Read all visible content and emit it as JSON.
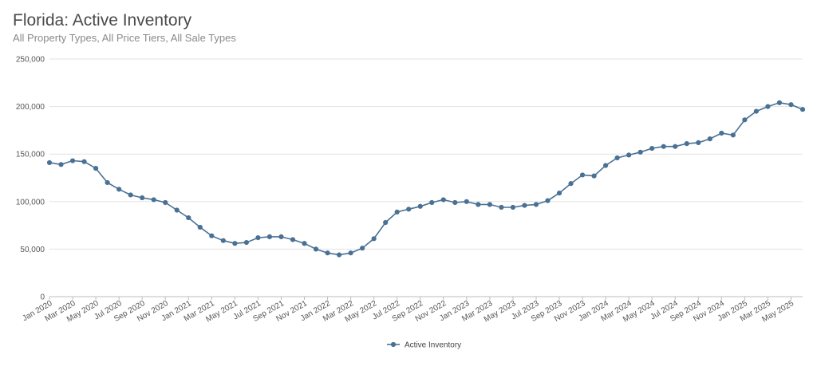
{
  "chart_data": {
    "type": "line",
    "title": "Florida: Active Inventory",
    "subtitle": "All Property Types, All Price Tiers, All Sale Types",
    "xlabel": "",
    "ylabel": "",
    "ylim": [
      0,
      250000
    ],
    "yticks": [
      "0",
      "50,000",
      "100,000",
      "150,000",
      "200,000",
      "250,000"
    ],
    "ytick_values": [
      0,
      50000,
      100000,
      150000,
      200000,
      250000
    ],
    "xtick_labels": [
      "Jan 2020",
      "Mar 2020",
      "May 2020",
      "Jul 2020",
      "Sep 2020",
      "Nov 2020",
      "Jan 2021",
      "Mar 2021",
      "May 2021",
      "Jul 2021",
      "Sep 2021",
      "Nov 2021",
      "Jan 2022",
      "Mar 2022",
      "May 2022",
      "Jul 2022",
      "Sep 2022",
      "Nov 2022",
      "Jan 2023",
      "Mar 2023",
      "May 2023",
      "Jul 2023",
      "Sep 2023",
      "Nov 2023",
      "Jan 2024",
      "Mar 2024",
      "May 2024",
      "Jul 2024",
      "Sep 2024",
      "Nov 2024",
      "Jan 2025",
      "Mar 2025",
      "May 2025"
    ],
    "grid": true,
    "legend_position": "bottom",
    "series": [
      {
        "name": "Active Inventory",
        "color": "#4a7194",
        "x": [
          "Jan 2020",
          "Feb 2020",
          "Mar 2020",
          "Apr 2020",
          "May 2020",
          "Jun 2020",
          "Jul 2020",
          "Aug 2020",
          "Sep 2020",
          "Oct 2020",
          "Nov 2020",
          "Dec 2020",
          "Jan 2021",
          "Feb 2021",
          "Mar 2021",
          "Apr 2021",
          "May 2021",
          "Jun 2021",
          "Jul 2021",
          "Aug 2021",
          "Sep 2021",
          "Oct 2021",
          "Nov 2021",
          "Dec 2021",
          "Jan 2022",
          "Feb 2022",
          "Mar 2022",
          "Apr 2022",
          "May 2022",
          "Jun 2022",
          "Jul 2022",
          "Aug 2022",
          "Sep 2022",
          "Oct 2022",
          "Nov 2022",
          "Dec 2022",
          "Jan 2023",
          "Feb 2023",
          "Mar 2023",
          "Apr 2023",
          "May 2023",
          "Jun 2023",
          "Jul 2023",
          "Aug 2023",
          "Sep 2023",
          "Oct 2023",
          "Nov 2023",
          "Dec 2023",
          "Jan 2024",
          "Feb 2024",
          "Mar 2024",
          "Apr 2024",
          "May 2024",
          "Jun 2024",
          "Jul 2024",
          "Aug 2024",
          "Sep 2024",
          "Oct 2024",
          "Nov 2024",
          "Dec 2024",
          "Jan 2025",
          "Feb 2025",
          "Mar 2025",
          "Apr 2025",
          "May 2025",
          "Jun 2025"
        ],
        "values": [
          141000,
          139000,
          143000,
          142000,
          135000,
          120000,
          113000,
          107000,
          104000,
          102000,
          99000,
          91000,
          83000,
          73000,
          64000,
          59000,
          56000,
          57000,
          62000,
          63000,
          63000,
          60000,
          56000,
          50000,
          46000,
          44000,
          46000,
          51000,
          61000,
          78000,
          89000,
          92000,
          95000,
          99000,
          102000,
          99000,
          100000,
          97000,
          97000,
          94000,
          94000,
          96000,
          97000,
          101000,
          109000,
          119000,
          128000,
          127000,
          138000,
          146000,
          149000,
          152000,
          156000,
          158000,
          158000,
          161000,
          162000,
          166000,
          172000,
          170000,
          186000,
          195000,
          200000,
          204000,
          202000,
          197000
        ]
      }
    ]
  }
}
